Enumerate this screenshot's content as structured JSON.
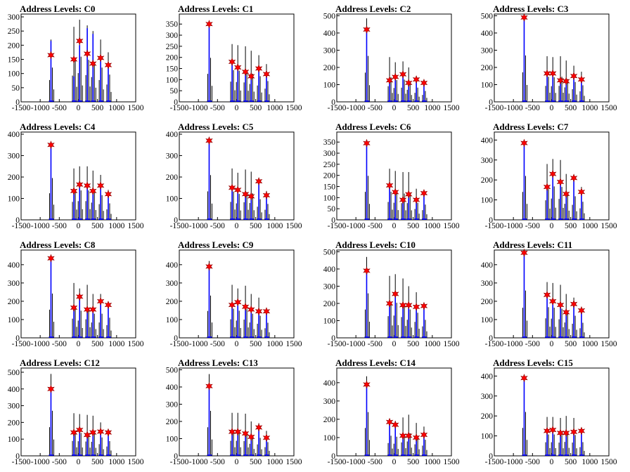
{
  "figure": {
    "x_ticks": [
      "-1500",
      "-1000",
      "-500",
      "0",
      "500",
      "1000",
      "1500"
    ],
    "x_range": [
      -1500,
      1500
    ],
    "colors": {
      "hist": "#000000",
      "fit": "#0000ff",
      "marker": "#ff0000",
      "marker_outline": "#8b0000"
    }
  },
  "chart_data": [
    {
      "type": "bar",
      "title": "Address Levels: C0",
      "ylim": [
        0,
        310
      ],
      "yticks": [
        0,
        50,
        100,
        150,
        200,
        250,
        300
      ],
      "peak_x": [
        -700,
        -100,
        50,
        250,
        400,
        600,
        800
      ],
      "hist_peaks": [
        220,
        265,
        290,
        270,
        250,
        220,
        175
      ],
      "fit_peaks": [
        215,
        90,
        200,
        260,
        240,
        150,
        130
      ],
      "markers": [
        165,
        150,
        215,
        170,
        135,
        155,
        130
      ]
    },
    {
      "type": "bar",
      "title": "Address Levels: C1",
      "ylim": [
        0,
        395
      ],
      "yticks": [
        0,
        50,
        100,
        150,
        200,
        250,
        300,
        350
      ],
      "peak_x": [
        -700,
        -100,
        50,
        250,
        400,
        600,
        800
      ],
      "hist_peaks": [
        360,
        260,
        255,
        250,
        230,
        210,
        170
      ],
      "fit_peaks": [
        350,
        175,
        155,
        130,
        110,
        150,
        125
      ],
      "markers": [
        350,
        180,
        155,
        135,
        115,
        150,
        125
      ]
    },
    {
      "type": "bar",
      "title": "Address Levels: C2",
      "ylim": [
        0,
        510
      ],
      "yticks": [
        0,
        100,
        200,
        300,
        400,
        500
      ],
      "peak_x": [
        -700,
        -100,
        50,
        250,
        400,
        600,
        800
      ],
      "hist_peaks": [
        485,
        260,
        230,
        235,
        200,
        150,
        115
      ],
      "fit_peaks": [
        420,
        125,
        145,
        160,
        105,
        135,
        110
      ],
      "markers": [
        420,
        125,
        145,
        160,
        110,
        130,
        110
      ]
    },
    {
      "type": "bar",
      "title": "Address Levels: C3",
      "ylim": [
        0,
        510
      ],
      "yticks": [
        0,
        100,
        200,
        300,
        400,
        500
      ],
      "peak_x": [
        -700,
        -100,
        50,
        250,
        400,
        600,
        800
      ],
      "hist_peaks": [
        490,
        265,
        260,
        265,
        240,
        210,
        175
      ],
      "fit_peaks": [
        490,
        165,
        165,
        125,
        120,
        150,
        130
      ],
      "markers": [
        490,
        165,
        165,
        125,
        120,
        150,
        130
      ]
    },
    {
      "type": "bar",
      "title": "Address Levels: C4",
      "ylim": [
        0,
        410
      ],
      "yticks": [
        0,
        100,
        200,
        300,
        400
      ],
      "peak_x": [
        -700,
        -100,
        50,
        250,
        400,
        600,
        800
      ],
      "hist_peaks": [
        355,
        240,
        250,
        250,
        230,
        210,
        140
      ],
      "fit_peaks": [
        350,
        135,
        165,
        160,
        140,
        160,
        120
      ],
      "markers": [
        350,
        135,
        165,
        160,
        135,
        160,
        120
      ]
    },
    {
      "type": "bar",
      "title": "Address Levels: C5",
      "ylim": [
        0,
        410
      ],
      "yticks": [
        0,
        100,
        200,
        300,
        400
      ],
      "peak_x": [
        -700,
        -100,
        50,
        250,
        400,
        600,
        800
      ],
      "hist_peaks": [
        380,
        240,
        220,
        235,
        225,
        175,
        135
      ],
      "fit_peaks": [
        370,
        150,
        140,
        120,
        110,
        180,
        115
      ],
      "markers": [
        370,
        150,
        140,
        120,
        110,
        180,
        115
      ]
    },
    {
      "type": "bar",
      "title": "Address Levels: C6",
      "ylim": [
        0,
        395
      ],
      "yticks": [
        0,
        50,
        100,
        150,
        200,
        250,
        300,
        350
      ],
      "peak_x": [
        -700,
        -100,
        50,
        250,
        400,
        600,
        800
      ],
      "hist_peaks": [
        360,
        230,
        220,
        215,
        215,
        140,
        125
      ],
      "fit_peaks": [
        345,
        155,
        125,
        90,
        115,
        90,
        120
      ],
      "markers": [
        345,
        155,
        125,
        90,
        115,
        90,
        120
      ]
    },
    {
      "type": "bar",
      "title": "Address Levels: C7",
      "ylim": [
        0,
        440
      ],
      "yticks": [
        0,
        100,
        200,
        300,
        400
      ],
      "peak_x": [
        -700,
        -100,
        50,
        250,
        400,
        600,
        800
      ],
      "hist_peaks": [
        400,
        280,
        305,
        300,
        230,
        215,
        165
      ],
      "fit_peaks": [
        385,
        165,
        230,
        190,
        130,
        210,
        140
      ],
      "markers": [
        385,
        165,
        230,
        190,
        130,
        210,
        140
      ]
    },
    {
      "type": "bar",
      "title": "Address Levels: C8",
      "ylim": [
        0,
        480
      ],
      "yticks": [
        0,
        100,
        200,
        300,
        400
      ],
      "peak_x": [
        -700,
        -100,
        50,
        250,
        400,
        600,
        800
      ],
      "hist_peaks": [
        440,
        300,
        270,
        290,
        240,
        240,
        200
      ],
      "fit_peaks": [
        435,
        165,
        225,
        155,
        155,
        200,
        180
      ],
      "markers": [
        435,
        165,
        225,
        155,
        155,
        200,
        180
      ]
    },
    {
      "type": "bar",
      "title": "Address Levels: C9",
      "ylim": [
        0,
        480
      ],
      "yticks": [
        0,
        100,
        200,
        300,
        400
      ],
      "peak_x": [
        -700,
        -100,
        50,
        250,
        400,
        600,
        800
      ],
      "hist_peaks": [
        420,
        290,
        270,
        285,
        240,
        220,
        150
      ],
      "fit_peaks": [
        385,
        185,
        195,
        170,
        155,
        145,
        145
      ],
      "markers": [
        390,
        180,
        195,
        170,
        155,
        145,
        145
      ]
    },
    {
      "type": "bar",
      "title": "Address Levels: C10",
      "ylim": [
        0,
        510
      ],
      "yticks": [
        0,
        100,
        200,
        300,
        400,
        500
      ],
      "peak_x": [
        -700,
        -100,
        50,
        250,
        400,
        600,
        800
      ],
      "hist_peaks": [
        470,
        360,
        370,
        345,
        300,
        265,
        190
      ],
      "fit_peaks": [
        390,
        200,
        255,
        190,
        190,
        180,
        185
      ],
      "markers": [
        390,
        200,
        255,
        190,
        190,
        180,
        185
      ]
    },
    {
      "type": "bar",
      "title": "Address Levels: C11",
      "ylim": [
        0,
        480
      ],
      "yticks": [
        0,
        100,
        200,
        300,
        400
      ],
      "peak_x": [
        -700,
        -100,
        50,
        250,
        400,
        600,
        800
      ],
      "hist_peaks": [
        470,
        305,
        300,
        290,
        240,
        220,
        150
      ],
      "fit_peaks": [
        465,
        235,
        200,
        180,
        140,
        185,
        150
      ],
      "markers": [
        465,
        235,
        200,
        180,
        140,
        185,
        150
      ]
    },
    {
      "type": "bar",
      "title": "Address Levels: C12",
      "ylim": [
        0,
        525
      ],
      "yticks": [
        0,
        100,
        200,
        300,
        400,
        500
      ],
      "peak_x": [
        -700,
        -100,
        50,
        250,
        400,
        600,
        800
      ],
      "hist_peaks": [
        490,
        255,
        250,
        245,
        240,
        200,
        160
      ],
      "fit_peaks": [
        400,
        145,
        155,
        130,
        145,
        145,
        140
      ],
      "markers": [
        400,
        140,
        155,
        125,
        140,
        145,
        140
      ]
    },
    {
      "type": "bar",
      "title": "Address Levels: C13",
      "ylim": [
        0,
        510
      ],
      "yticks": [
        0,
        100,
        200,
        300,
        400,
        500
      ],
      "peak_x": [
        -700,
        -100,
        50,
        250,
        400,
        600,
        800
      ],
      "hist_peaks": [
        475,
        250,
        250,
        245,
        200,
        190,
        145
      ],
      "fit_peaks": [
        400,
        145,
        140,
        130,
        115,
        165,
        105
      ],
      "markers": [
        405,
        140,
        140,
        130,
        110,
        165,
        105
      ]
    },
    {
      "type": "bar",
      "title": "Address Levels: C14",
      "ylim": [
        0,
        480
      ],
      "yticks": [
        0,
        100,
        200,
        300,
        400
      ],
      "peak_x": [
        -700,
        -100,
        50,
        250,
        400,
        600,
        800
      ],
      "hist_peaks": [
        435,
        200,
        190,
        210,
        225,
        180,
        160
      ],
      "fit_peaks": [
        390,
        190,
        170,
        110,
        115,
        100,
        115
      ],
      "markers": [
        390,
        185,
        170,
        110,
        110,
        100,
        115
      ]
    },
    {
      "type": "bar",
      "title": "Address Levels: C15",
      "ylim": [
        0,
        440
      ],
      "yticks": [
        0,
        100,
        200,
        300,
        400
      ],
      "peak_x": [
        -700,
        -100,
        50,
        250,
        400,
        600,
        800
      ],
      "hist_peaks": [
        400,
        195,
        195,
        190,
        200,
        190,
        125
      ],
      "fit_peaks": [
        390,
        125,
        125,
        115,
        110,
        120,
        125
      ],
      "markers": [
        390,
        125,
        130,
        115,
        115,
        120,
        125
      ]
    }
  ]
}
